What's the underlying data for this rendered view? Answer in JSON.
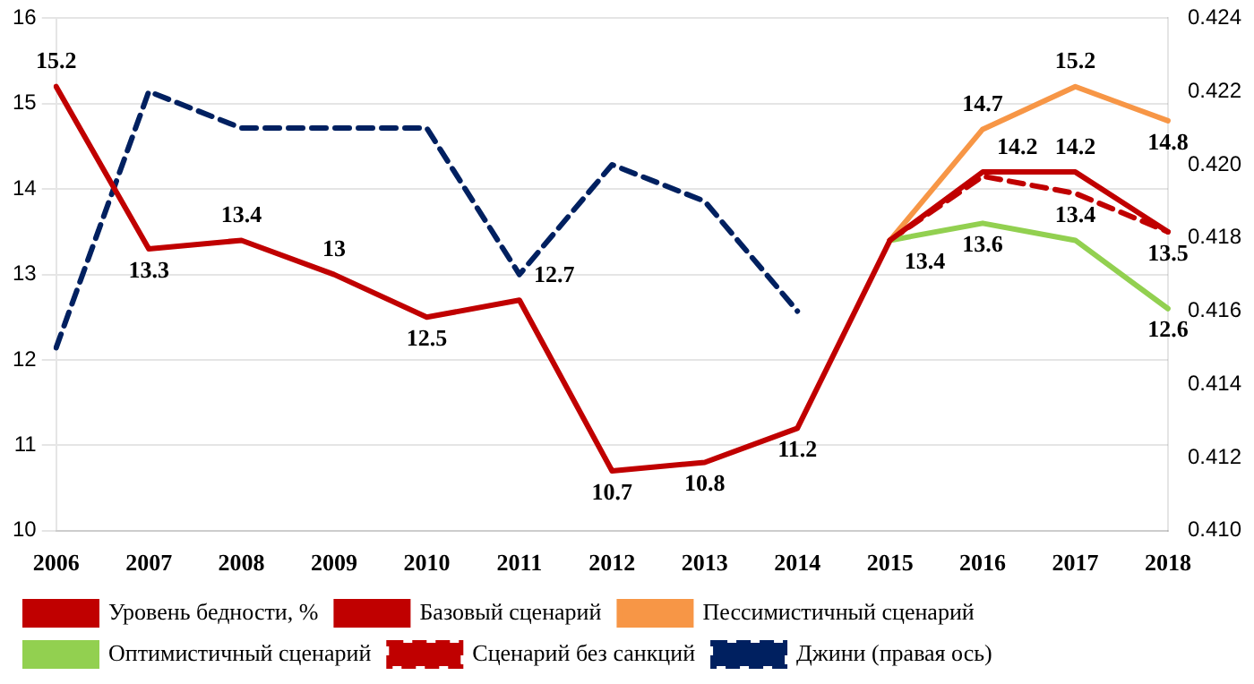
{
  "chart_data": {
    "type": "line",
    "categories": [
      "2006",
      "2007",
      "2008",
      "2009",
      "2010",
      "2011",
      "2012",
      "2013",
      "2014",
      "2015",
      "2016",
      "2017",
      "2018"
    ],
    "series": [
      {
        "name": "Уровень бедности, %",
        "color": "#c00000",
        "line_style": "solid",
        "values": [
          15.2,
          13.3,
          13.4,
          13,
          12.5,
          12.7,
          10.7,
          10.8,
          11.2,
          13.4,
          null,
          null,
          null
        ],
        "value_labels": [
          "15.2",
          "13.3",
          "13.4",
          "13",
          "12.5",
          "12.7",
          "10.7",
          "10.8",
          "11.2",
          "13.4",
          null,
          null,
          null
        ]
      },
      {
        "name": "Базовый сценарий",
        "color": "#c00000",
        "line_style": "solid",
        "values": [
          null,
          null,
          null,
          null,
          null,
          null,
          null,
          null,
          null,
          13.4,
          14.2,
          14.2,
          13.5
        ],
        "value_labels": [
          null,
          null,
          null,
          null,
          null,
          null,
          null,
          null,
          null,
          null,
          "14.2",
          "14.2",
          "13.5"
        ]
      },
      {
        "name": "Пессимистичный сценарий",
        "color": "#f79646",
        "line_style": "solid",
        "values": [
          null,
          null,
          null,
          null,
          null,
          null,
          null,
          null,
          null,
          13.4,
          14.7,
          15.2,
          14.8
        ],
        "value_labels": [
          null,
          null,
          null,
          null,
          null,
          null,
          null,
          null,
          null,
          null,
          "14.7",
          "15.2",
          "14.8"
        ]
      },
      {
        "name": "Оптимистичный сценарий",
        "color": "#92d050",
        "line_style": "solid",
        "values": [
          null,
          null,
          null,
          null,
          null,
          null,
          null,
          null,
          null,
          13.4,
          13.6,
          13.4,
          12.6
        ],
        "value_labels": [
          null,
          null,
          null,
          null,
          null,
          null,
          null,
          null,
          null,
          null,
          "13.6",
          "13.4",
          "12.6"
        ]
      },
      {
        "name": "Сценарий без санкций",
        "color": "#c00000",
        "line_style": "dashed",
        "values": [
          null,
          null,
          null,
          null,
          null,
          null,
          null,
          null,
          null,
          13.4,
          14.15,
          13.95,
          13.5
        ]
      },
      {
        "name": "Джини (правая ось)",
        "color": "#002060",
        "line_style": "dashed",
        "axis": "y2",
        "values": [
          0.415,
          0.422,
          0.421,
          0.421,
          0.421,
          0.417,
          0.42,
          0.419,
          0.416,
          null,
          null,
          null,
          null
        ]
      }
    ],
    "ylim": [
      10,
      16
    ],
    "yticks": [
      10,
      11,
      12,
      13,
      14,
      15,
      16
    ],
    "y2lim": [
      0.41,
      0.424
    ],
    "y2ticks": [
      {
        "value": 0.41,
        "label": "0.410"
      },
      {
        "value": 0.412,
        "label": "0.412"
      },
      {
        "value": 0.414,
        "label": "0.414"
      },
      {
        "value": 0.416,
        "label": "0.416"
      },
      {
        "value": 0.418,
        "label": "0.418"
      },
      {
        "value": 0.42,
        "label": "0.420"
      },
      {
        "value": 0.422,
        "label": "0.422"
      },
      {
        "value": 0.424,
        "label": "0.424"
      }
    ],
    "grid": "y",
    "legend": "bottom",
    "marker": "none"
  }
}
